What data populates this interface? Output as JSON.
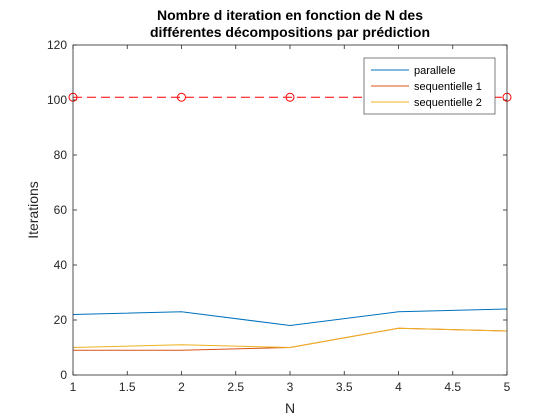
{
  "chart_data": {
    "type": "line",
    "title": [
      "Nombre d iteration en fonction de N des",
      "différentes décompositions par prédiction"
    ],
    "xlabel": "N",
    "ylabel": "Iterations",
    "xlim": [
      1,
      5
    ],
    "ylim": [
      0,
      120
    ],
    "xticks": [
      1,
      1.5,
      2,
      2.5,
      3,
      3.5,
      4,
      4.5,
      5
    ],
    "xtick_labels": [
      "1",
      "1.5",
      "2",
      "2.5",
      "3",
      "3.5",
      "4",
      "4.5",
      "5"
    ],
    "yticks": [
      0,
      20,
      40,
      60,
      80,
      100,
      120
    ],
    "ytick_labels": [
      "0",
      "20",
      "40",
      "60",
      "80",
      "100",
      "120"
    ],
    "grid": false,
    "legend_position": "top-right",
    "x": [
      1,
      2,
      3,
      4,
      5
    ],
    "series": [
      {
        "name": "parallele",
        "values": [
          22,
          23,
          18,
          23,
          24
        ],
        "color": "#0072BD",
        "style": "solid"
      },
      {
        "name": "sequentielle 1",
        "values": [
          9,
          9,
          10,
          17,
          16
        ],
        "color": "#D95319",
        "style": "solid"
      },
      {
        "name": "sequentielle 2",
        "values": [
          10,
          11,
          10,
          17,
          16
        ],
        "color": "#EDB120",
        "style": "solid"
      }
    ],
    "reference_line": {
      "values": [
        101,
        101,
        101,
        101,
        101
      ],
      "color": "#FF0000",
      "style": "dashed",
      "marker": "circle"
    }
  }
}
